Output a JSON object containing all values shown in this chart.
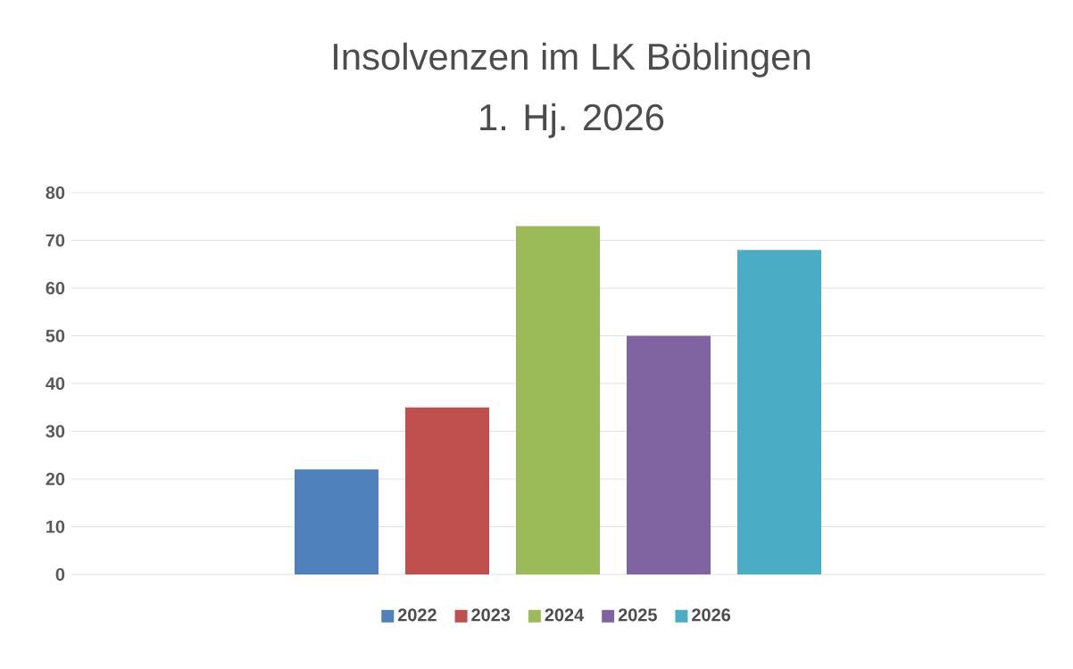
{
  "chart_data": {
    "type": "bar",
    "title": "Insolvenzen im LK Böblingen",
    "subtitle": "1. Hj. 2026",
    "categories": [
      null
    ],
    "series": [
      {
        "name": "2022",
        "color": "#4f81bd",
        "values": [
          22
        ]
      },
      {
        "name": "2023",
        "color": "#c0504d",
        "values": [
          35
        ]
      },
      {
        "name": "2024",
        "color": "#9bbb59",
        "values": [
          73
        ]
      },
      {
        "name": "2025",
        "color": "#8064a2",
        "values": [
          50
        ]
      },
      {
        "name": "2026",
        "color": "#4bacc6",
        "values": [
          68
        ]
      }
    ],
    "ylim": [
      0,
      80
    ],
    "yticks": [
      0,
      10,
      20,
      30,
      40,
      50,
      60,
      70,
      80
    ],
    "grid": "y",
    "legend": "bottom",
    "tick_labels": "y"
  }
}
